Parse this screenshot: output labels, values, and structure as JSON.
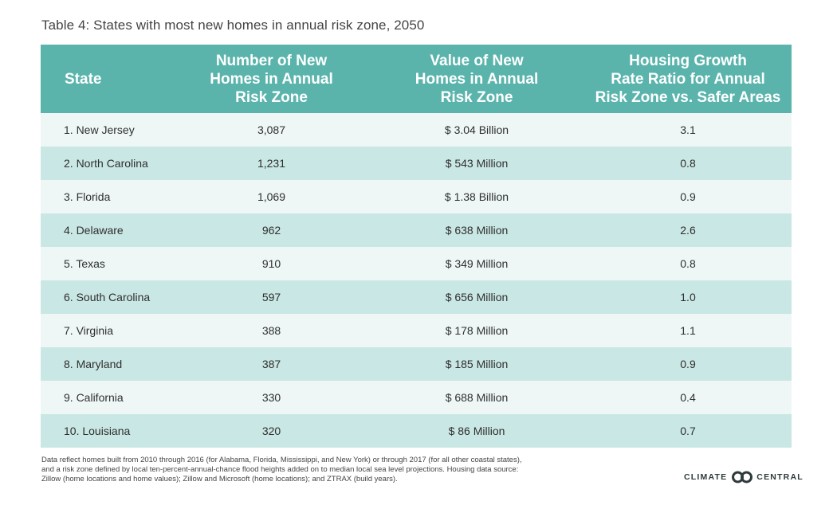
{
  "title": "Table 4: States with most new homes in annual risk zone, 2050",
  "chart_data": {
    "type": "table",
    "title": "Table 4: States with most new homes in annual risk zone, 2050",
    "columns": [
      "State",
      "Number of New Homes in Annual Risk Zone",
      "Value of New Homes in Annual Risk Zone",
      "Housing Growth Rate Ratio for Annual Risk Zone vs. Safer Areas"
    ],
    "header_lines": [
      [
        "State"
      ],
      [
        "Number of New",
        "Homes in Annual",
        "Risk Zone"
      ],
      [
        "Value of New",
        "Homes in Annual",
        "Risk Zone"
      ],
      [
        "Housing Growth",
        "Rate Ratio for Annual",
        "Risk Zone vs. Safer Areas"
      ]
    ],
    "rows": [
      [
        "1. New Jersey",
        "3,087",
        "$ 3.04 Billion",
        "3.1"
      ],
      [
        "2. North Carolina",
        "1,231",
        "$ 543 Million",
        "0.8"
      ],
      [
        "3. Florida",
        "1,069",
        "$ 1.38 Billion",
        "0.9"
      ],
      [
        "4. Delaware",
        "962",
        "$ 638 Million",
        "2.6"
      ],
      [
        "5. Texas",
        "910",
        "$ 349 Million",
        "0.8"
      ],
      [
        "6. South Carolina",
        "597",
        "$ 656 Million",
        "1.0"
      ],
      [
        "7. Virginia",
        "388",
        "$ 178 Million",
        "1.1"
      ],
      [
        "8. Maryland",
        "387",
        "$ 185 Million",
        "0.9"
      ],
      [
        "9. California",
        "330",
        "$ 688 Million",
        "0.4"
      ],
      [
        "10. Louisiana",
        "320",
        "$ 86 Million",
        "0.7"
      ]
    ]
  },
  "footnote": [
    "Data reflect homes built from 2010 through 2016 (for Alabama, Florida, Mississippi, and New York) or through 2017 (for all other coastal states),",
    "and a risk zone defined by local ten-percent-annual-chance flood heights added on to median local sea level projections. Housing data source:",
    "Zillow (home locations and home values); Zillow and Microsoft (home locations); and ZTRAX (build years)."
  ],
  "logo": {
    "left": "CLIMATE",
    "right": "CENTRAL",
    "icon": "climate-central-logo-icon"
  },
  "colors": {
    "header_bg": "#5ab4ac",
    "row_light": "#eef7f6",
    "row_dark": "#c9e7e4"
  }
}
